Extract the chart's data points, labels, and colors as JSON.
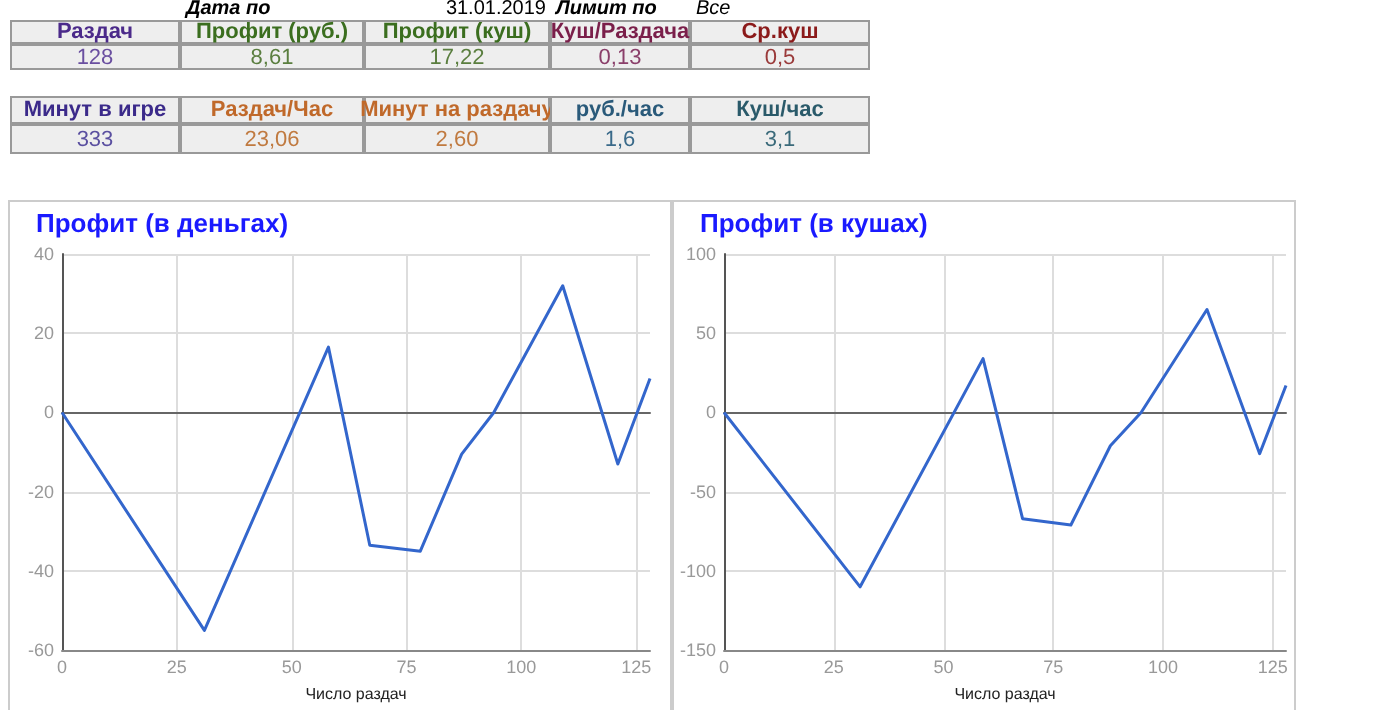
{
  "chart_data": [
    {
      "type": "other",
      "annotations": [
        "Дата по",
        "31.01.2019",
        "Лимит по",
        "Все",
        "Раздач",
        "Профит (руб.)",
        "Профит (куш)",
        "Куш/Раздача",
        "Ср.куш",
        "128",
        "8,61",
        "17,22",
        "0,13",
        "0,5",
        "Минут в игре",
        "Раздач/Час",
        "Минут на раздачу",
        "руб./час",
        "Куш/час",
        "333",
        "23,06",
        "2,60",
        "1,6",
        "3,1"
      ]
    },
    {
      "type": "line",
      "title": "Профит (в деньгах)",
      "xlabel": "Число раздач",
      "x": [
        0,
        31,
        58,
        67,
        78,
        87,
        94,
        109,
        121,
        128
      ],
      "values": [
        0,
        -55,
        16.5,
        -33.5,
        -35,
        -10.5,
        0,
        32,
        -13,
        8.6
      ],
      "color": "#3366cc",
      "marker": "none",
      "grid": true,
      "xlim": [
        0,
        128
      ],
      "xticks": [
        0,
        25,
        50,
        75,
        100,
        125
      ],
      "ylim": [
        -60,
        40
      ],
      "yticks": [
        -60,
        -40,
        -20,
        0,
        20,
        40
      ]
    },
    {
      "type": "line",
      "title": "Профит (в кушах)",
      "xlabel": "Число раздач",
      "x": [
        0,
        31,
        59,
        68,
        79,
        88,
        95,
        110,
        122,
        128
      ],
      "values": [
        0,
        -110,
        34,
        -67,
        -71,
        -21,
        0,
        65,
        -26,
        17
      ],
      "color": "#3366cc",
      "marker": "none",
      "grid": true,
      "xlim": [
        0,
        128
      ],
      "xticks": [
        0,
        25,
        50,
        75,
        100,
        125
      ],
      "ylim": [
        -150,
        100
      ],
      "yticks": [
        -150,
        -100,
        -50,
        0,
        50,
        100
      ]
    }
  ]
}
